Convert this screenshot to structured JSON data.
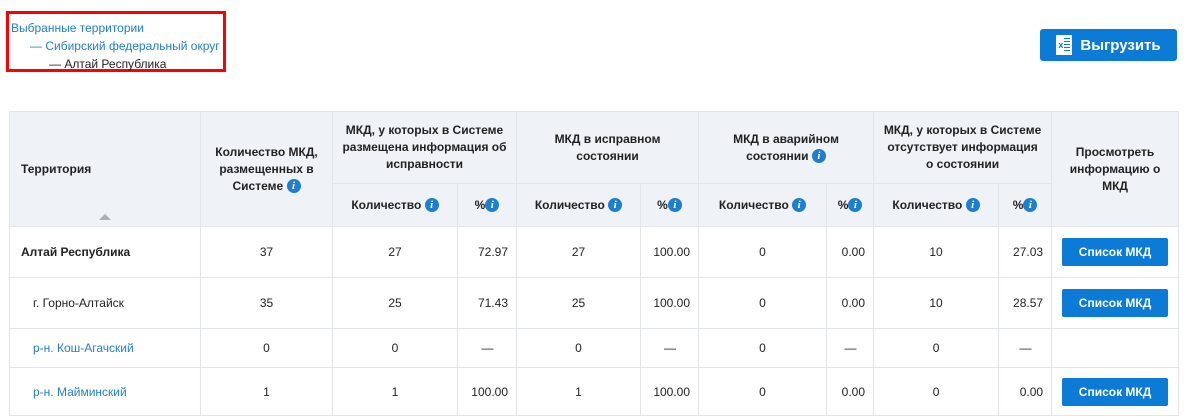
{
  "breadcrumbs": {
    "root": "Выбранные территории",
    "level1": "— Сибирский федеральный округ",
    "level2": "— Алтай Республика"
  },
  "export_button": {
    "label": "Выгрузить",
    "icon": "excel-icon"
  },
  "table": {
    "headers": {
      "territory": "Территория",
      "total": "Количество МКД, размещенных в Системе",
      "info": "МКД, у которых в Системе размещена информация об исправности",
      "good": "МКД в исправном состоянии",
      "emergency": "МКД в аварийном состоянии",
      "noinfo": "МКД, у которых в Системе отсутствует информация о состоянии",
      "view": "Просмотреть информацию о МКД",
      "count": "Количество",
      "percent": "%"
    },
    "rows": [
      {
        "name": "Алтай Республика",
        "total": "37",
        "info_count": "27",
        "info_pct": "72.97",
        "good_count": "27",
        "good_pct": "100.00",
        "em_count": "0",
        "em_pct": "0.00",
        "noinfo_count": "10",
        "noinfo_pct": "27.03",
        "button": "Список МКД"
      },
      {
        "name": "г. Горно-Алтайск",
        "total": "35",
        "info_count": "25",
        "info_pct": "71.43",
        "good_count": "25",
        "good_pct": "100.00",
        "em_count": "0",
        "em_pct": "0.00",
        "noinfo_count": "10",
        "noinfo_pct": "28.57",
        "button": "Список МКД"
      },
      {
        "name": "р-н. Кош-Агачский",
        "total": "0",
        "info_count": "0",
        "info_pct": "—",
        "good_count": "0",
        "good_pct": "—",
        "em_count": "0",
        "em_pct": "—",
        "noinfo_count": "0",
        "noinfo_pct": "—"
      },
      {
        "name": "р-н. Майминский",
        "total": "1",
        "info_count": "1",
        "info_pct": "100.00",
        "good_count": "1",
        "good_pct": "100.00",
        "em_count": "0",
        "em_pct": "0.00",
        "noinfo_count": "0",
        "noinfo_pct": "0.00",
        "button": "Список МКД"
      }
    ]
  }
}
